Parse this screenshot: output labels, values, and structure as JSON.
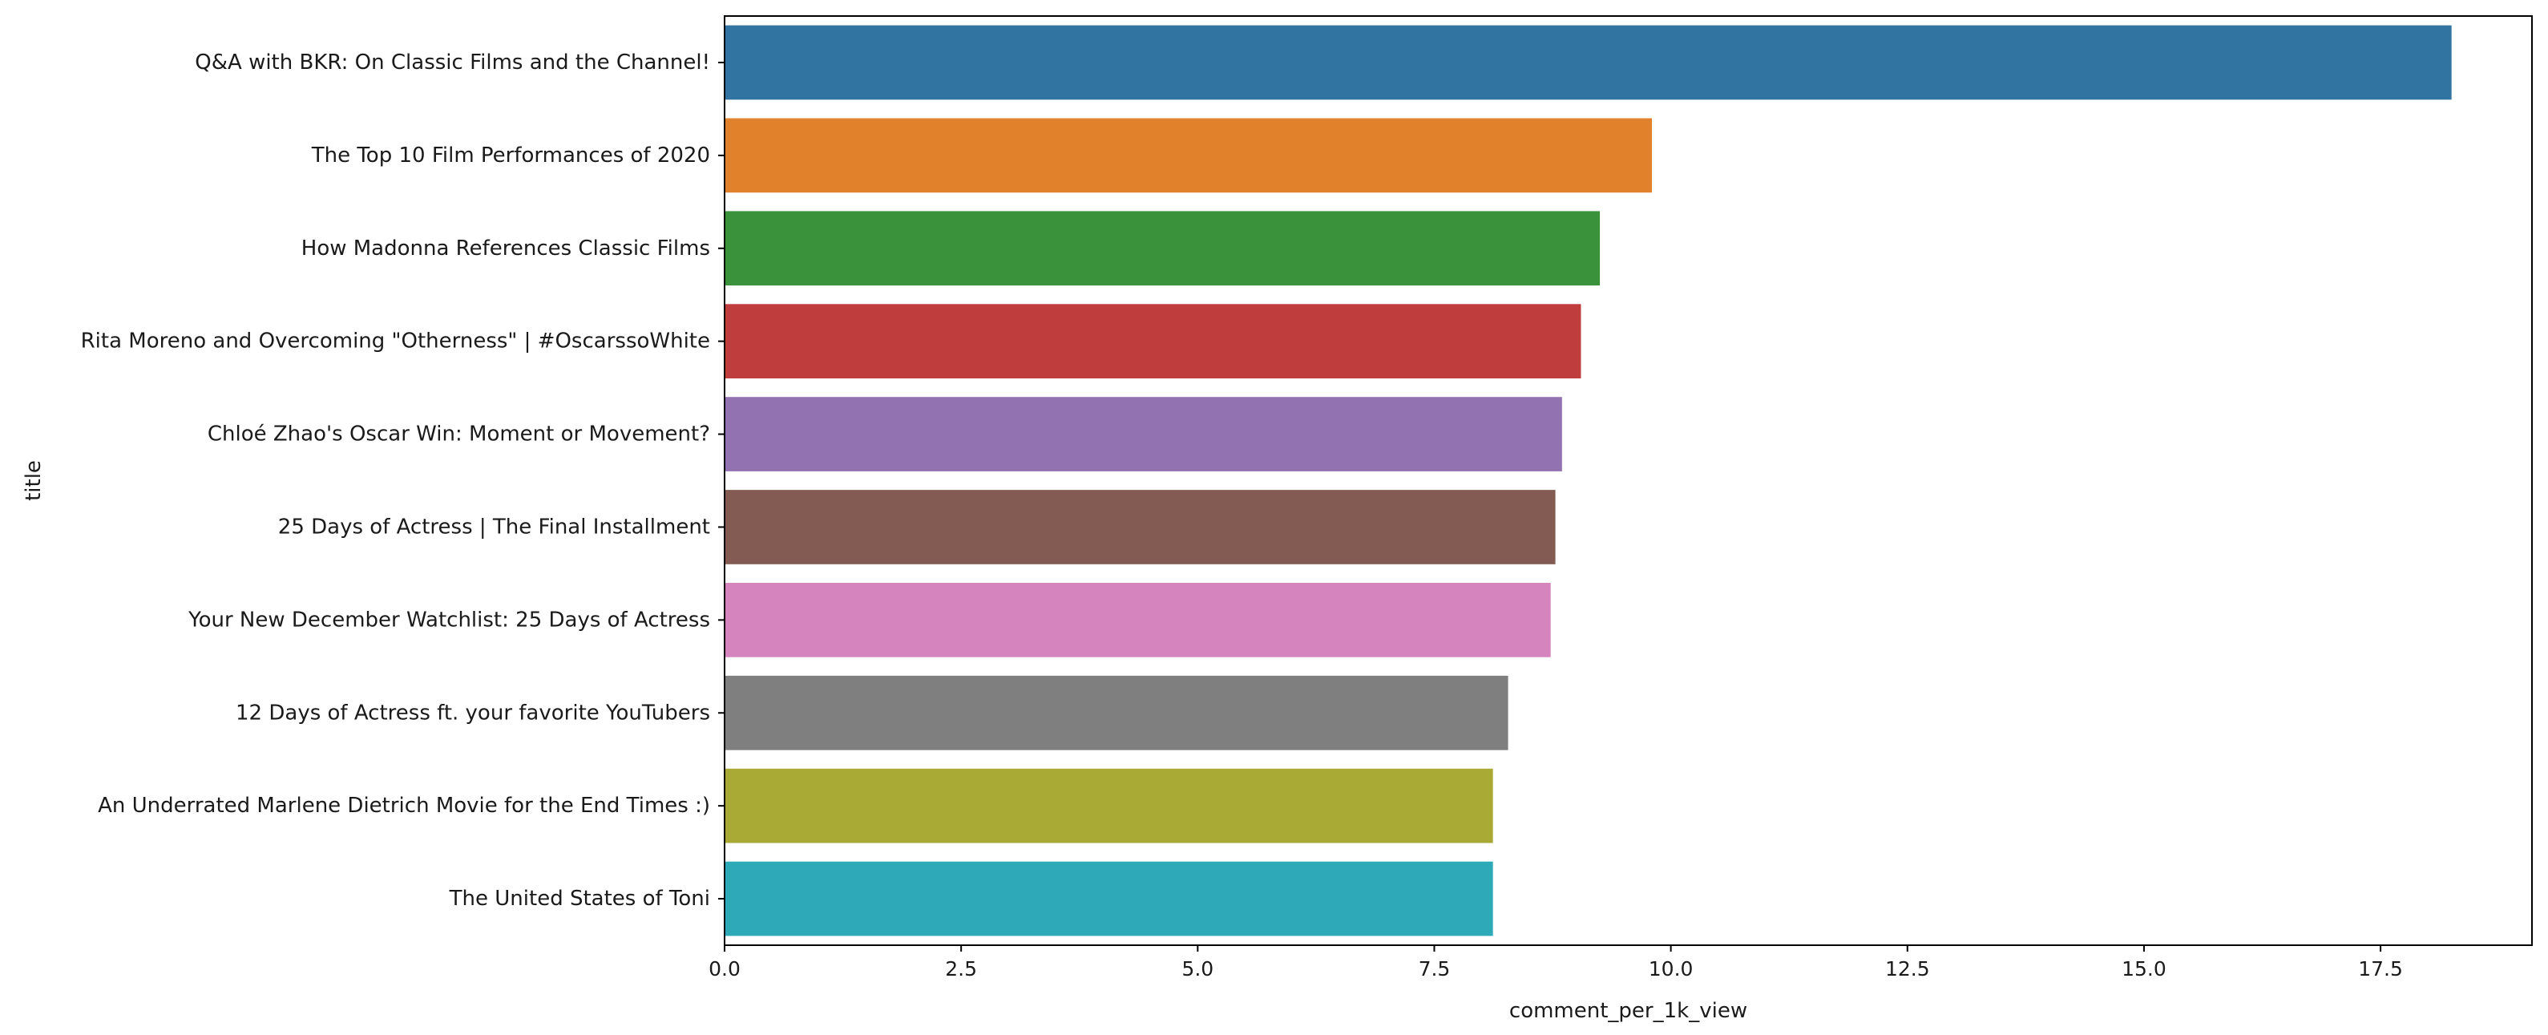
{
  "chart_data": {
    "type": "bar",
    "orientation": "horizontal",
    "title": "",
    "xlabel": "comment_per_1k_view",
    "ylabel": "title",
    "xlim": [
      0,
      19.1
    ],
    "xticks": [
      0.0,
      2.5,
      5.0,
      7.5,
      10.0,
      12.5,
      15.0,
      17.5
    ],
    "xtick_labels": [
      "0.0",
      "2.5",
      "5.0",
      "7.5",
      "10.0",
      "12.5",
      "15.0",
      "17.5"
    ],
    "grid": false,
    "categories": [
      "Q&A with BKR: On Classic Films and the Channel!",
      "The Top 10 Film Performances of 2020",
      "How Madonna References Classic Films",
      "Rita Moreno and Overcoming \"Otherness\" | #OscarssoWhite",
      "Chloé Zhao's Oscar Win: Moment or Movement?",
      "25 Days of Actress | The Final Installment",
      "Your New December Watchlist: 25 Days of Actress",
      "12 Days of Actress ft. your favorite YouTubers",
      "An Underrated Marlene Dietrich Movie for the End Times :)",
      "The United States of Toni"
    ],
    "values": [
      18.25,
      9.8,
      9.25,
      9.05,
      8.85,
      8.78,
      8.73,
      8.28,
      8.12,
      8.12
    ],
    "colors": [
      "#3274a1",
      "#e1812c",
      "#3a923a",
      "#c03d3e",
      "#9372b2",
      "#845b53",
      "#d684bd",
      "#7f7f7f",
      "#a9aa35",
      "#2ea9b8"
    ]
  }
}
